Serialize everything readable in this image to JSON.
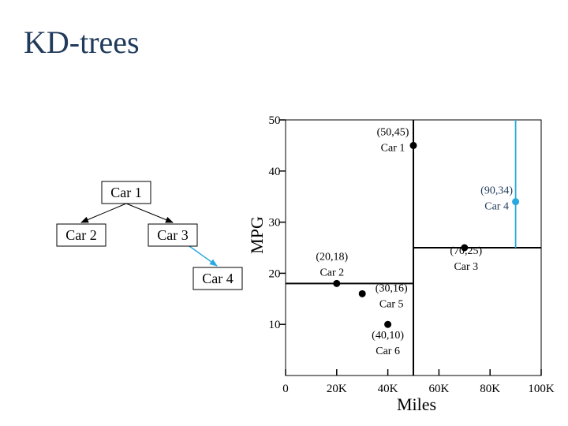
{
  "title": "KD-trees",
  "accent_color": "#29a8e0",
  "tree": {
    "nodes": [
      {
        "id": "car1",
        "label": "Car 1"
      },
      {
        "id": "car2",
        "label": "Car 2"
      },
      {
        "id": "car3",
        "label": "Car 3"
      },
      {
        "id": "car4",
        "label": "Car 4"
      }
    ],
    "edges": [
      {
        "from": "car1",
        "to": "car2",
        "highlight": false
      },
      {
        "from": "car1",
        "to": "car3",
        "highlight": false
      },
      {
        "from": "car3",
        "to": "car4",
        "highlight": true
      }
    ]
  },
  "chart_data": {
    "type": "scatter",
    "xlabel": "Miles",
    "ylabel": "MPG",
    "xlim": [
      0,
      100
    ],
    "ylim": [
      0,
      50
    ],
    "x_ticks": [
      {
        "value": 0,
        "label": "0"
      },
      {
        "value": 20,
        "label": "20K"
      },
      {
        "value": 40,
        "label": "40K"
      },
      {
        "value": 60,
        "label": "60K"
      },
      {
        "value": 80,
        "label": "80K"
      },
      {
        "value": 100,
        "label": "100K"
      }
    ],
    "y_ticks": [
      {
        "value": 10,
        "label": "10"
      },
      {
        "value": 20,
        "label": "20"
      },
      {
        "value": 30,
        "label": "30"
      },
      {
        "value": 40,
        "label": "40"
      },
      {
        "value": 50,
        "label": "50"
      }
    ],
    "points": [
      {
        "name": "Car 1",
        "coord_label": "(50,45)",
        "x": 50,
        "y": 45,
        "highlight": false
      },
      {
        "name": "Car 2",
        "coord_label": "(20,18)",
        "x": 20,
        "y": 18,
        "highlight": false
      },
      {
        "name": "Car 3",
        "coord_label": "(70,25)",
        "x": 70,
        "y": 25,
        "highlight": false
      },
      {
        "name": "Car 4",
        "coord_label": "(90,34)",
        "x": 90,
        "y": 34,
        "highlight": true
      },
      {
        "name": "Car 5",
        "coord_label": "(30,16)",
        "x": 30,
        "y": 16,
        "highlight": false
      },
      {
        "name": "Car 6",
        "coord_label": "(40,10)",
        "x": 40,
        "y": 10,
        "highlight": false
      }
    ],
    "splits": [
      {
        "axis": "x",
        "value": 50,
        "range": [
          0,
          50
        ],
        "highlight": false
      },
      {
        "axis": "y",
        "value": 18,
        "range": [
          0,
          50
        ],
        "highlight": false
      },
      {
        "axis": "y",
        "value": 25,
        "range": [
          50,
          100
        ],
        "highlight": false
      },
      {
        "axis": "x",
        "value": 90,
        "range": [
          25,
          50
        ],
        "highlight": true
      }
    ]
  }
}
